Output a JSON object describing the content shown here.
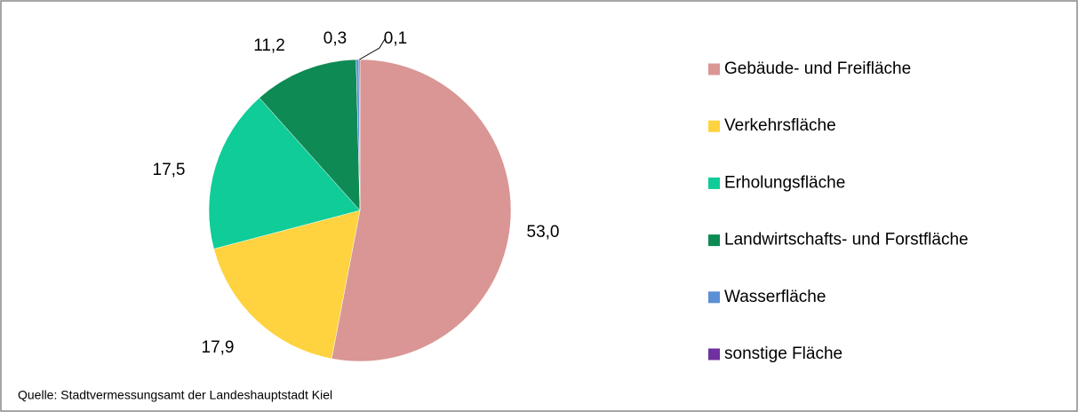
{
  "chart_data": {
    "type": "pie",
    "categories": [
      "Gebäude- und Freifläche",
      "Verkehrsfläche",
      "Erholungsfläche",
      "Landwirtschafts- und Forstfläche",
      "Wasserfläche",
      "sonstige Fläche"
    ],
    "values": [
      53.0,
      17.9,
      17.5,
      11.2,
      0.3,
      0.1
    ],
    "value_labels": [
      "53,0",
      "17,9",
      "17,5",
      "11,2",
      "0,3",
      "0,1"
    ],
    "colors": [
      "#d99694",
      "#ffd23f",
      "#0fcc98",
      "#0e8a55",
      "#5b8fd6",
      "#7030a0"
    ],
    "legend": "right",
    "source": "Quelle: Stadtvermessungsamt der Landeshauptstadt Kiel"
  }
}
